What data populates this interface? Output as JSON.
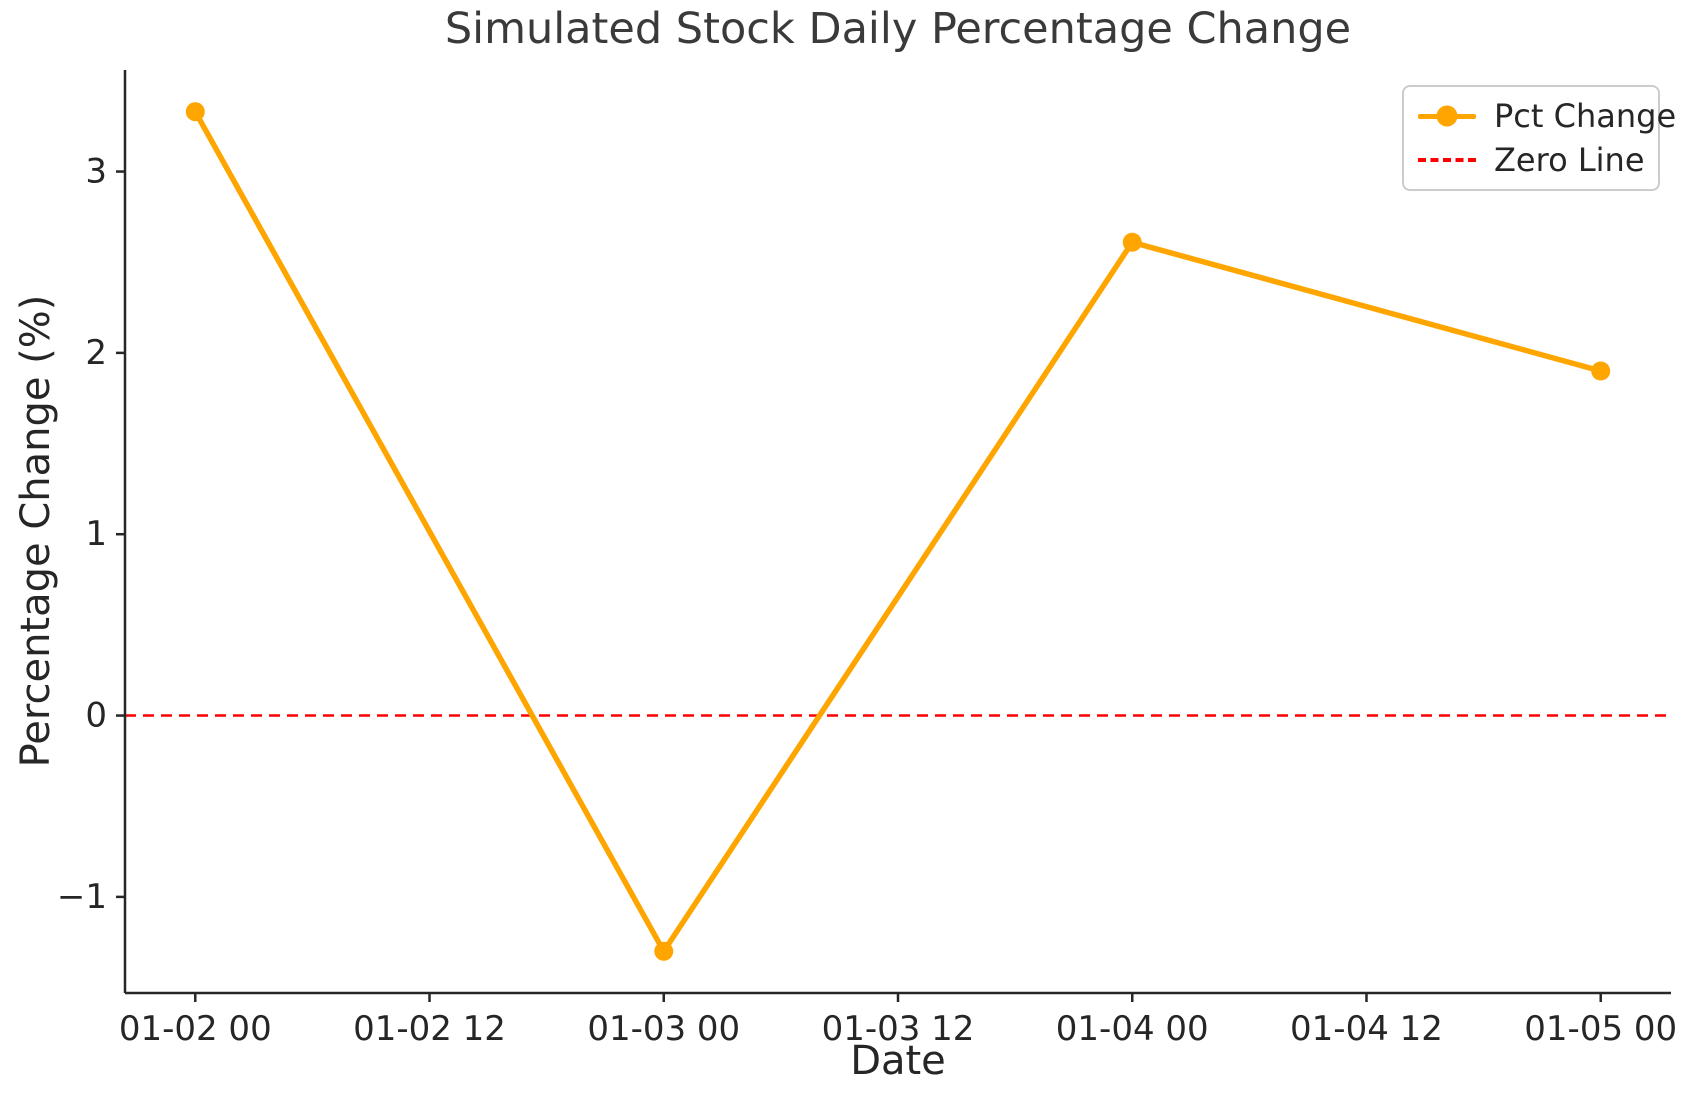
{
  "figure": {
    "title": "Simulated Stock Daily Percentage Change",
    "xlabel": "Date",
    "ylabel": "Percentage Change (%)"
  },
  "legend": {
    "position": "upper right",
    "items": [
      {
        "label": "Pct Change",
        "type": "line-with-circle-marker",
        "color": "#FFA500"
      },
      {
        "label": "Zero Line",
        "type": "dashed-line",
        "color": "#FF0000"
      }
    ]
  },
  "chart_data": {
    "type": "line",
    "title": "Simulated Stock Daily Percentage Change",
    "xlabel": "Date",
    "ylabel": "Percentage Change (%)",
    "grid": false,
    "legend_position": "upper right",
    "x_tick_labels": [
      "01-02 00",
      "01-02 12",
      "01-03 00",
      "01-03 12",
      "01-04 00",
      "01-04 12",
      "01-05 00"
    ],
    "x_tick_hours": [
      0,
      12,
      24,
      36,
      48,
      60,
      72
    ],
    "y_ticks": [
      {
        "value": 3,
        "label": "3"
      },
      {
        "value": 2,
        "label": "2"
      },
      {
        "value": 1,
        "label": "1"
      },
      {
        "value": 0,
        "label": "0"
      },
      {
        "value": -1,
        "label": "−1"
      }
    ],
    "xlim_hours": [
      -3.6,
      75.6
    ],
    "ylim": [
      -1.53,
      3.56
    ],
    "series": [
      {
        "name": "Pct Change",
        "color": "#FFA500",
        "marker": "circle",
        "x": [
          "01-02 00",
          "01-03 00",
          "01-04 00",
          "01-05 00"
        ],
        "x_hours": [
          0,
          24,
          48,
          72
        ],
        "values": [
          3.33,
          -1.3,
          2.61,
          1.9
        ]
      }
    ],
    "annotations": [
      {
        "name": "Zero Line",
        "type": "hline",
        "y": 0,
        "color": "#FF0000",
        "linestyle": "dashed"
      }
    ],
    "colors": {
      "line": "#FFA500",
      "zero_line": "#FF0000",
      "text": "#262626",
      "title": "#3a3a3a",
      "spine": "#262626",
      "legend_border": "#cccccc"
    }
  }
}
